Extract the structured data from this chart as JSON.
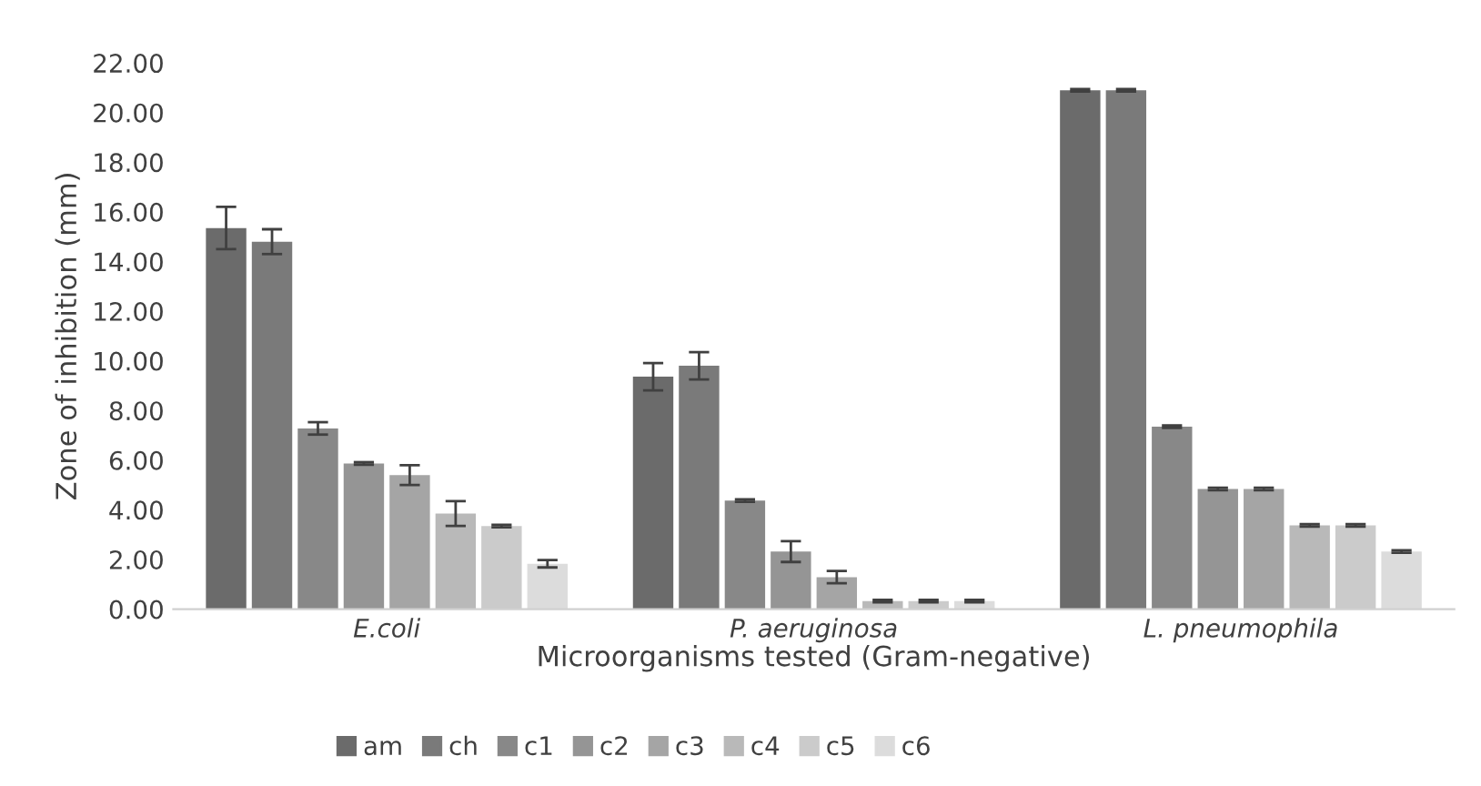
{
  "chart_data": {
    "type": "bar",
    "xlabel": "Microorganisms tested (Gram-negative)",
    "ylabel": "Zone of inhibition (mm)",
    "categories": [
      "E.coli",
      "P. aeruginosa",
      "L. pneumophila"
    ],
    "series": [
      {
        "name": "am",
        "color": "#6b6b6b",
        "values": [
          15.35,
          9.36,
          20.9
        ],
        "errors": [
          0.85,
          0.55,
          0.05
        ]
      },
      {
        "name": "ch",
        "color": "#7a7a7a",
        "values": [
          14.8,
          9.8,
          20.9
        ],
        "errors": [
          0.5,
          0.55,
          0.05
        ]
      },
      {
        "name": "c1",
        "color": "#888888",
        "values": [
          7.28,
          4.37,
          7.35
        ],
        "errors": [
          0.25,
          0.05,
          0.05
        ]
      },
      {
        "name": "c2",
        "color": "#959595",
        "values": [
          5.87,
          2.32,
          4.84
        ],
        "errors": [
          0.05,
          0.42,
          0.05
        ]
      },
      {
        "name": "c3",
        "color": "#a5a5a5",
        "values": [
          5.4,
          1.29,
          4.84
        ],
        "errors": [
          0.4,
          0.25,
          0.05
        ]
      },
      {
        "name": "c4",
        "color": "#b9b9b9",
        "values": [
          3.85,
          0.32,
          3.37
        ],
        "errors": [
          0.5,
          0.05,
          0.05
        ]
      },
      {
        "name": "c5",
        "color": "#cbcbcb",
        "values": [
          3.35,
          0.32,
          3.37
        ],
        "errors": [
          0.05,
          0.05,
          0.05
        ]
      },
      {
        "name": "c6",
        "color": "#dcdcdc",
        "values": [
          1.83,
          0.32,
          2.32
        ],
        "errors": [
          0.15,
          0.05,
          0.05
        ]
      }
    ],
    "ylim": [
      0,
      22
    ],
    "yticks": [
      {
        "value": 0,
        "label": "0.00"
      },
      {
        "value": 2,
        "label": "2.00"
      },
      {
        "value": 4,
        "label": "4.00"
      },
      {
        "value": 6,
        "label": "6.00"
      },
      {
        "value": 8,
        "label": "8.00"
      },
      {
        "value": 10,
        "label": "10.00"
      },
      {
        "value": 12,
        "label": "12.00"
      },
      {
        "value": 14,
        "label": "14.00"
      },
      {
        "value": 16,
        "label": "16.00"
      },
      {
        "value": 18,
        "label": "18.00"
      },
      {
        "value": 20,
        "label": "20.00"
      },
      {
        "value": 22,
        "label": "22.00"
      }
    ],
    "grid": false,
    "legend": "bottom"
  }
}
